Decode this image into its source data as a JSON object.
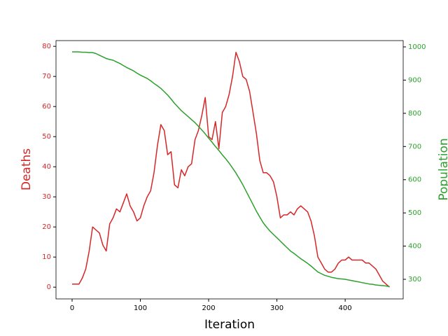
{
  "chart_data": {
    "type": "line",
    "x_label": "Iteration",
    "y_label": "Deaths",
    "y2_label": "Population",
    "x": [
      0,
      5,
      10,
      15,
      20,
      25,
      30,
      35,
      40,
      45,
      50,
      55,
      60,
      65,
      70,
      75,
      80,
      85,
      90,
      95,
      100,
      105,
      110,
      115,
      120,
      125,
      130,
      135,
      140,
      145,
      150,
      155,
      160,
      165,
      170,
      175,
      180,
      185,
      190,
      195,
      200,
      205,
      210,
      215,
      220,
      225,
      230,
      235,
      240,
      245,
      250,
      255,
      260,
      265,
      270,
      275,
      280,
      285,
      290,
      295,
      300,
      305,
      310,
      315,
      320,
      325,
      330,
      335,
      340,
      345,
      350,
      355,
      360,
      365,
      370,
      375,
      380,
      385,
      390,
      395,
      400,
      405,
      410,
      415,
      420,
      425,
      430,
      435,
      440,
      445,
      450,
      455,
      460,
      465
    ],
    "series": [
      {
        "name": "Deaths",
        "color": "#d62728",
        "values": [
          1,
          1,
          1,
          3,
          6,
          12,
          20,
          19,
          18,
          14,
          12,
          21,
          23,
          26,
          25,
          28,
          31,
          27,
          25,
          22,
          23,
          27,
          30,
          32,
          38,
          47,
          54,
          52,
          44,
          45,
          34,
          33,
          39,
          37,
          40,
          41,
          49,
          52,
          57,
          63,
          50,
          49,
          55,
          46,
          58,
          60,
          64,
          70,
          78,
          75,
          70,
          69,
          65,
          58,
          51,
          42,
          38,
          38,
          37,
          35,
          30,
          23,
          24,
          24,
          25,
          24,
          26,
          27,
          26,
          25,
          22,
          17,
          10,
          8,
          6,
          5,
          5,
          6,
          8,
          9,
          9,
          10,
          9,
          9,
          9,
          9,
          8,
          8,
          7,
          6,
          4,
          2,
          1,
          0
        ]
      },
      {
        "name": "Population",
        "color": "#2ca02c",
        "axis": "y2",
        "values": [
          985,
          985,
          985,
          984,
          984,
          983,
          983,
          980,
          975,
          970,
          965,
          962,
          960,
          955,
          950,
          944,
          938,
          933,
          928,
          921,
          915,
          910,
          905,
          898,
          890,
          883,
          875,
          865,
          855,
          843,
          830,
          819,
          808,
          799,
          790,
          781,
          772,
          761,
          750,
          738,
          725,
          713,
          700,
          688,
          675,
          663,
          650,
          635,
          620,
          603,
          585,
          565,
          545,
          525,
          505,
          487,
          470,
          457,
          445,
          435,
          425,
          415,
          405,
          395,
          385,
          378,
          370,
          362,
          355,
          348,
          340,
          331,
          322,
          317,
          312,
          309,
          306,
          304,
          302,
          301,
          300,
          298,
          296,
          294,
          292,
          290,
          288,
          286,
          285,
          283,
          282,
          281,
          280,
          278
        ]
      }
    ],
    "xlim": [
      -23.6,
      485
    ],
    "xticks": [
      0,
      100,
      200,
      300,
      400
    ],
    "ylim": [
      -3.9,
      81.9
    ],
    "yticks": [
      0,
      10,
      20,
      30,
      40,
      50,
      60,
      70,
      80
    ],
    "y2lim": [
      241,
      1019
    ],
    "y2ticks": [
      300,
      400,
      500,
      600,
      700,
      800,
      900,
      1000
    ]
  }
}
